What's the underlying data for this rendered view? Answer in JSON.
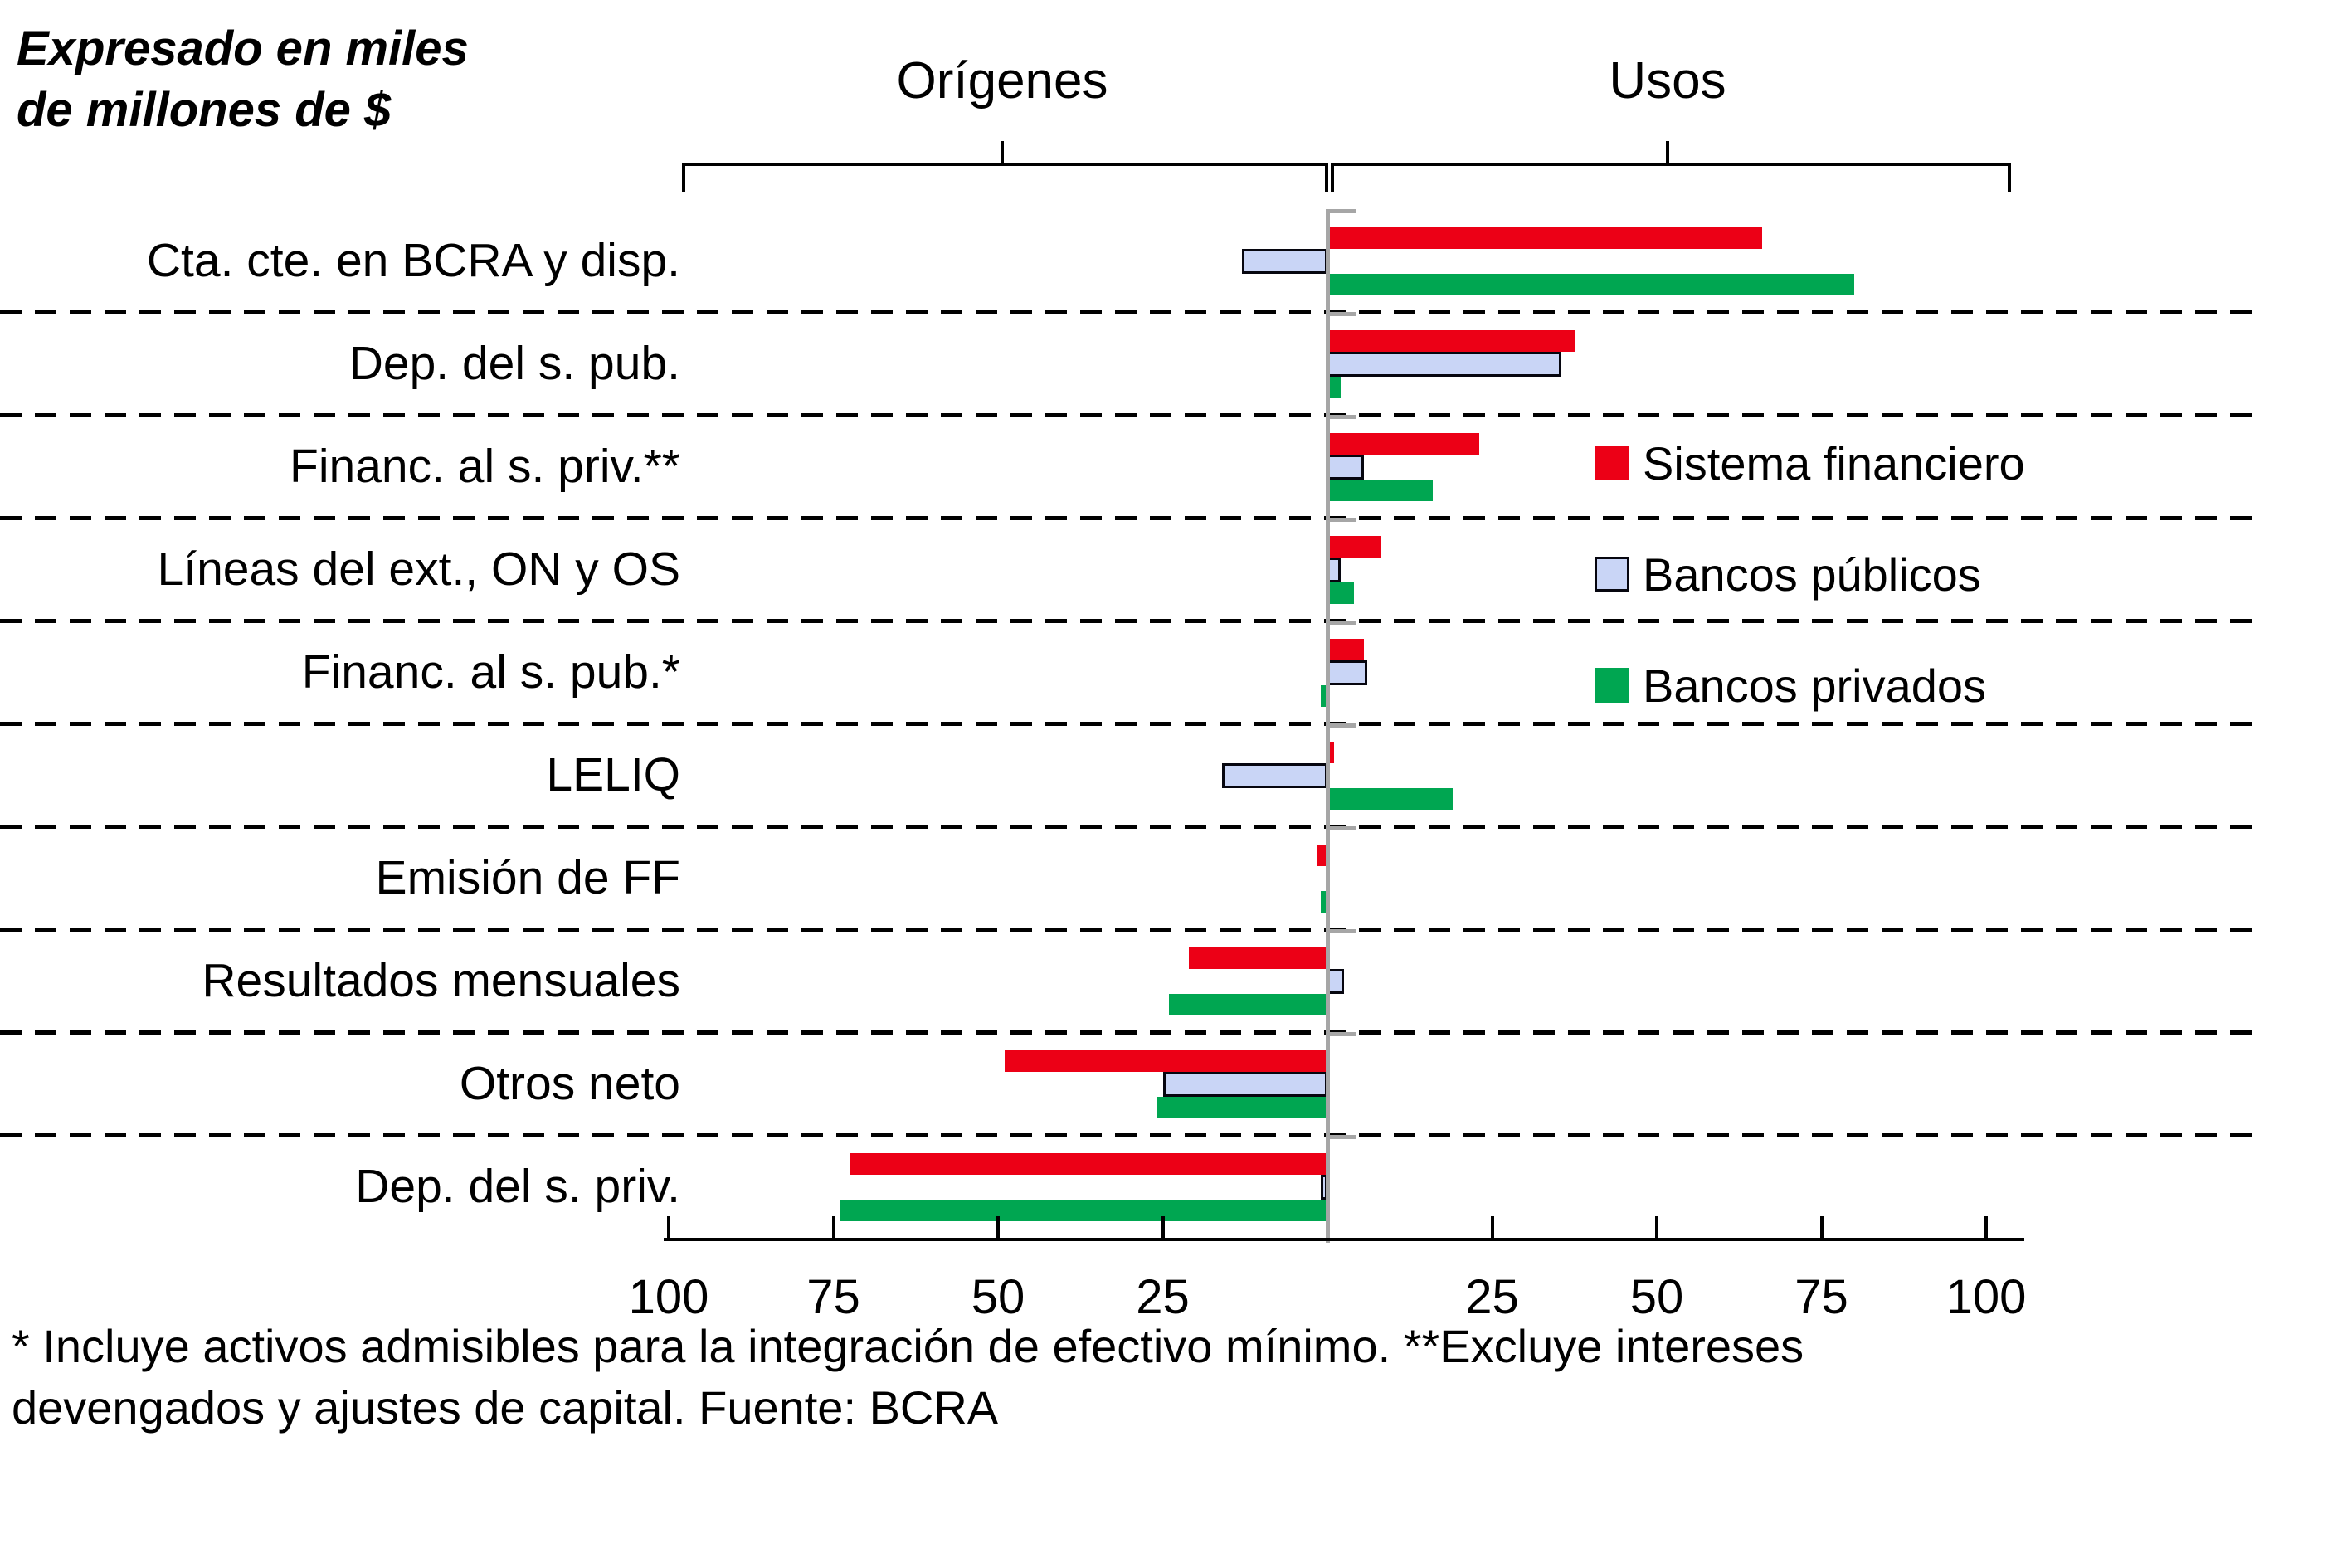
{
  "title": {
    "line1": "Expresado en miles",
    "line2": "de millones de $"
  },
  "axis_groups": {
    "left": "Orígenes",
    "right": "Usos"
  },
  "legend": [
    {
      "label": "Sistema financiero",
      "color": "#ec0016",
      "border": false
    },
    {
      "label": "Bancos públicos",
      "color": "#c9d5f6",
      "border": true
    },
    {
      "label": "Bancos privados",
      "color": "#00a651",
      "border": false
    }
  ],
  "footnote": {
    "line1": "* Incluye activos admisibles para la integración de efectivo mínimo. **Excluye intereses",
    "line2": "devengados y ajustes de capital. Fuente: BCRA"
  },
  "colors": {
    "zero_line": "#a6a6a6",
    "axis": "#000000",
    "separator": "#000000",
    "blue_border": "#06060f"
  },
  "chart_data": {
    "type": "bar",
    "orientation": "horizontal-diverging",
    "title": "Expresado en miles de millones de $",
    "negative_side_label": "Orígenes",
    "positive_side_label": "Usos",
    "xlim": [
      -100,
      100
    ],
    "x_ticks": [
      -100,
      -75,
      -50,
      -25,
      0,
      25,
      50,
      75,
      100
    ],
    "x_tick_labels": [
      "100",
      "75",
      "50",
      "25",
      "",
      "25",
      "50",
      "75",
      "100"
    ],
    "grid": "dashed-row-separators",
    "legend_position": "right-inside",
    "categories": [
      "Cta. cte. en BCRA y disp.",
      "Dep. del s. pub.",
      "Financ. al s. priv.**",
      "Líneas del ext., ON y OS",
      "Financ. al s. pub.*",
      "LELIQ",
      "Emisión de FF",
      "Resultados mensuales",
      "Otros neto",
      "Dep. del s. priv."
    ],
    "series": [
      {
        "name": "Sistema financiero",
        "color": "#ec0016",
        "values": [
          66,
          37.5,
          23,
          8,
          5.5,
          1,
          -1.5,
          -21,
          -49,
          -72.5
        ]
      },
      {
        "name": "Bancos públicos",
        "color": "#c9d5f6",
        "values": [
          -13,
          35.5,
          5.5,
          2,
          6,
          -16,
          0,
          2.5,
          -25,
          -1
        ]
      },
      {
        "name": "Bancos privados",
        "color": "#00a651",
        "values": [
          80,
          2,
          16,
          4,
          -1,
          19,
          -1,
          -24,
          -26,
          -74
        ]
      }
    ]
  }
}
